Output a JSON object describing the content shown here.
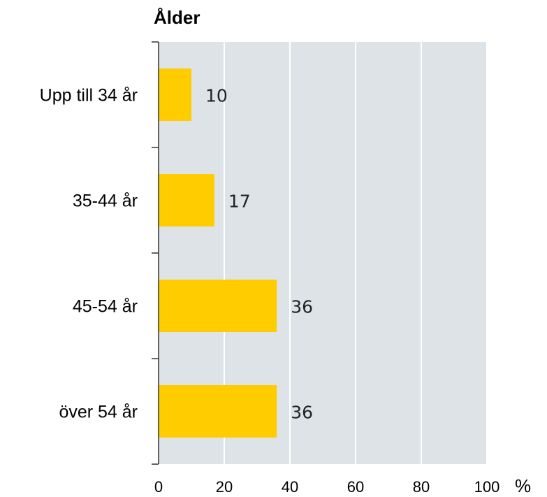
{
  "colors": {
    "bar": "#FFCC00",
    "plot_background": "#DEE3E8",
    "gridline": "#FFFFFF",
    "axis": "#333333",
    "text": "#000000"
  },
  "chart_data": {
    "type": "bar",
    "orientation": "horizontal",
    "title": "Ålder",
    "categories": [
      "Upp till 34 år",
      "35-44 år",
      "45-54 år",
      "över 54 år"
    ],
    "values": [
      10,
      17,
      36,
      36
    ],
    "value_labels": [
      "10",
      "17",
      "36",
      "36"
    ],
    "xlim": [
      0,
      100
    ],
    "xticks": [
      0,
      20,
      40,
      60,
      80,
      100
    ],
    "xtick_labels": [
      "0",
      "20",
      "40",
      "60",
      "80",
      "100"
    ],
    "xunit": "%",
    "grid": true,
    "legend": "none"
  }
}
